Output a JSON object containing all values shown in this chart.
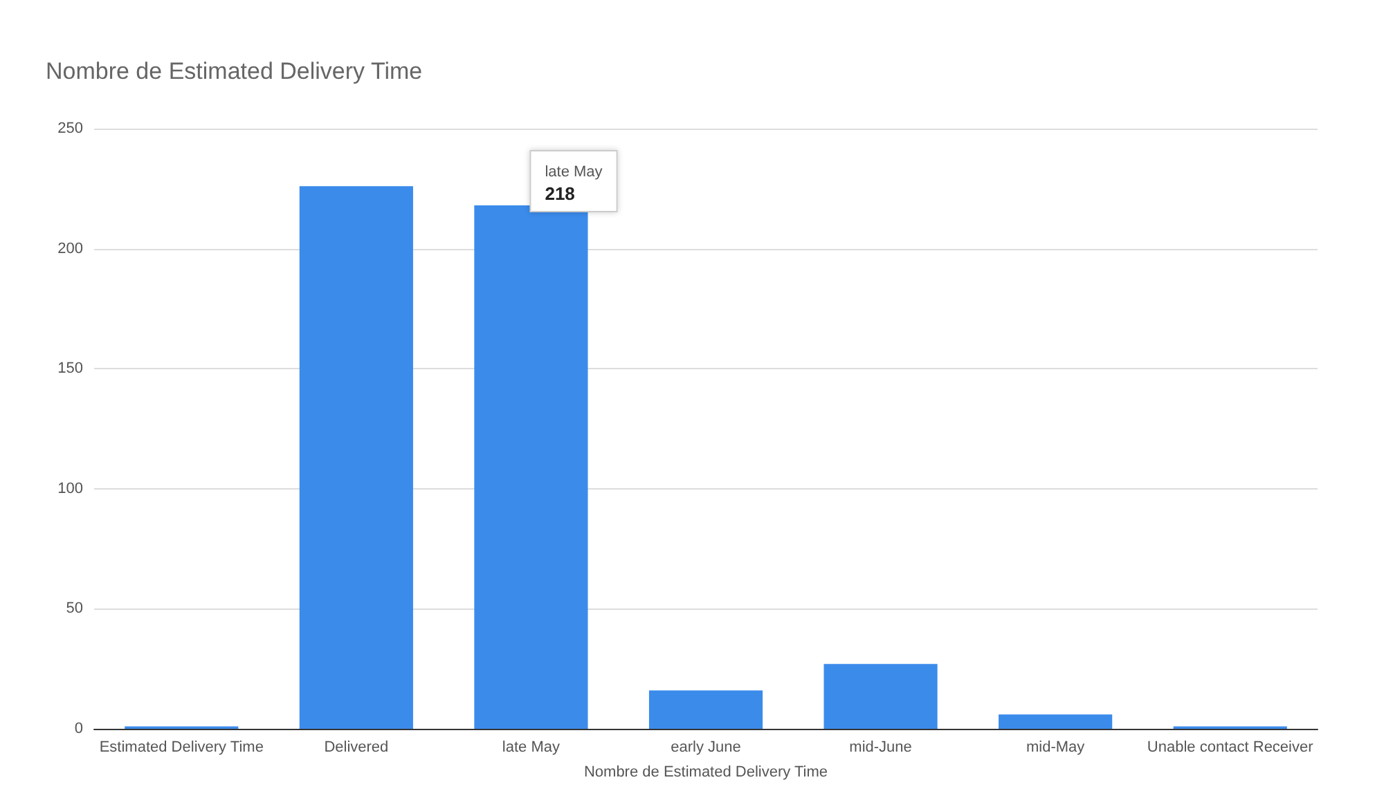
{
  "chart_data": {
    "type": "bar",
    "title": "Nombre de Estimated Delivery Time",
    "xlabel": "Nombre de Estimated Delivery Time",
    "categories": [
      "Estimated Delivery Time",
      "Delivered",
      "late May",
      "early June",
      "mid-June",
      "mid-May",
      "Unable contact Receiver"
    ],
    "values": [
      1,
      226,
      218,
      16,
      27,
      6,
      1
    ],
    "value_labels": [
      null,
      null,
      "218",
      null,
      null,
      null,
      null
    ],
    "color": "#3b8beb",
    "ylim": [
      0,
      250
    ],
    "yticks": [
      0,
      50,
      100,
      150,
      200,
      250
    ],
    "grid": "y"
  }
}
